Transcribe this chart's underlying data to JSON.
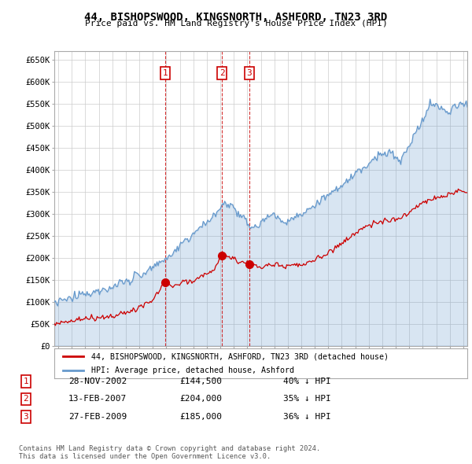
{
  "title": "44, BISHOPSWOOD, KINGSNORTH, ASHFORD, TN23 3RD",
  "subtitle": "Price paid vs. HM Land Registry's House Price Index (HPI)",
  "ylim": [
    0,
    670000
  ],
  "yticks": [
    0,
    50000,
    100000,
    150000,
    200000,
    250000,
    300000,
    350000,
    400000,
    450000,
    500000,
    550000,
    600000,
    650000
  ],
  "xlim_start": 1994.7,
  "xlim_end": 2025.3,
  "line1_color": "#cc0000",
  "line2_color": "#6699cc",
  "fill2_color": "#ddeeff",
  "legend_label1": "44, BISHOPSWOOD, KINGSNORTH, ASHFORD, TN23 3RD (detached house)",
  "legend_label2": "HPI: Average price, detached house, Ashford",
  "transactions": [
    {
      "num": "1",
      "date": 2002.91,
      "price": 144500
    },
    {
      "num": "2",
      "date": 2007.12,
      "price": 204000
    },
    {
      "num": "3",
      "date": 2009.16,
      "price": 185000
    }
  ],
  "transaction_table": [
    {
      "num": "1",
      "date": "28-NOV-2002",
      "price": "£144,500",
      "pct": "40% ↓ HPI"
    },
    {
      "num": "2",
      "date": "13-FEB-2007",
      "price": "£204,000",
      "pct": "35% ↓ HPI"
    },
    {
      "num": "3",
      "date": "27-FEB-2009",
      "price": "£185,000",
      "pct": "36% ↓ HPI"
    }
  ],
  "footer": "Contains HM Land Registry data © Crown copyright and database right 2024.\nThis data is licensed under the Open Government Licence v3.0.",
  "background_color": "#ffffff",
  "grid_color": "#cccccc"
}
